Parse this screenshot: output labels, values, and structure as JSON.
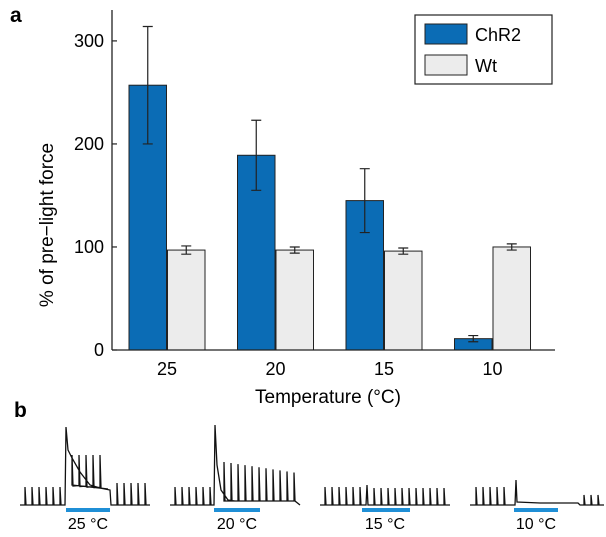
{
  "panel_a_label": "a",
  "panel_b_label": "b",
  "colors": {
    "chr2": "#0b6cb5",
    "wt": "#ececec",
    "axis": "#222222",
    "light_bar": "#1f8fd6"
  },
  "chart_data": {
    "type": "bar",
    "categories": [
      "25",
      "20",
      "15",
      "10"
    ],
    "series": [
      {
        "name": "ChR2",
        "values": [
          257,
          189,
          145,
          11
        ],
        "error": [
          57,
          34,
          31,
          3
        ]
      },
      {
        "name": "Wt",
        "values": [
          97,
          97,
          96,
          100
        ],
        "error": [
          4,
          3,
          3,
          3
        ]
      }
    ],
    "xlabel": "Temperature (°C)",
    "ylabel": "% of pre−light force",
    "ylim": [
      0,
      330
    ],
    "yticks": [
      "0",
      "100",
      "200",
      "300"
    ],
    "grid": false,
    "legend_position": "top-right"
  },
  "traces": [
    {
      "label": "25 °C"
    },
    {
      "label": "20 °C"
    },
    {
      "label": "15 °C"
    },
    {
      "label": "10 °C"
    }
  ]
}
